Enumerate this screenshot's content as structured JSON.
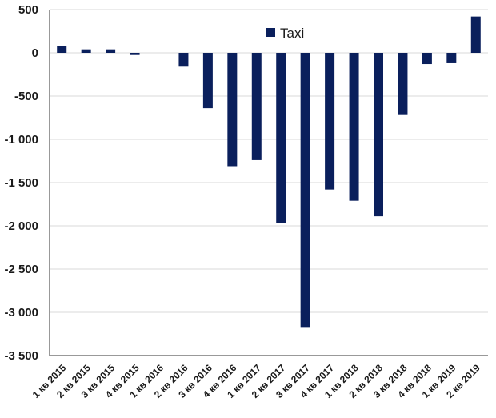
{
  "chart_data": {
    "type": "bar",
    "title": "",
    "xlabel": "",
    "ylabel": "",
    "categories": [
      "1 кв 2015",
      "2 кв 2015",
      "3 кв 2015",
      "4 кв 2015",
      "1 кв 2016",
      "2 кв 2016",
      "3 кв 2016",
      "4 кв 2016",
      "1 кв 2017",
      "2 кв 2017",
      "3 кв 2017",
      "4 кв 2017",
      "1 кв 2018",
      "2 кв 2018",
      "3 кв 2018",
      "4 кв 2018",
      "1 кв 2019",
      "2 кв 2019"
    ],
    "series": [
      {
        "name": "Taxi",
        "color": "#0a1f5c",
        "values": [
          80,
          40,
          40,
          -25,
          0,
          -160,
          -640,
          -1310,
          -1240,
          -1970,
          -3170,
          -1580,
          -1710,
          -1890,
          -710,
          -130,
          -120,
          420
        ]
      }
    ],
    "ylim": [
      -3500,
      500
    ],
    "yticks": [
      500,
      0,
      -500,
      -1000,
      -1500,
      -2000,
      -2500,
      -3000,
      -3500
    ],
    "ytick_labels": [
      "500",
      "0",
      "-500",
      "-1 000",
      "-1 500",
      "-2 000",
      "-2 500",
      "-3 000",
      "-3 500"
    ],
    "grid": true,
    "legend_position": "top-center"
  }
}
